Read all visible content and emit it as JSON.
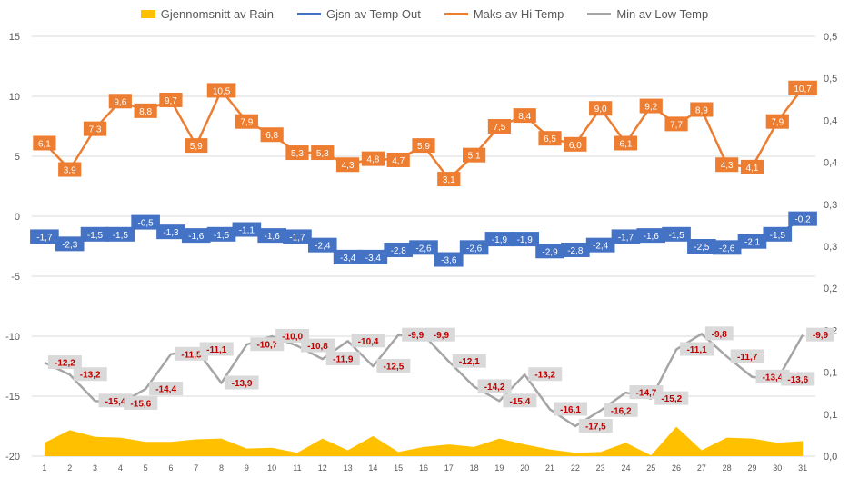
{
  "chart_data": {
    "type": "line",
    "categories": [
      "1",
      "2",
      "3",
      "4",
      "5",
      "6",
      "7",
      "8",
      "9",
      "10",
      "11",
      "12",
      "13",
      "14",
      "15",
      "16",
      "17",
      "18",
      "19",
      "20",
      "21",
      "22",
      "23",
      "24",
      "25",
      "26",
      "27",
      "28",
      "29",
      "30",
      "31"
    ],
    "y_left": {
      "range": [
        -20,
        15
      ],
      "ticks": [
        "-20",
        "-15",
        "-10",
        "-5",
        "0",
        "5",
        "10",
        "15"
      ]
    },
    "y_right": {
      "range": [
        0,
        0.5
      ],
      "ticks": [
        "0,0",
        "0,1",
        "0,1",
        "0,2",
        "0,2",
        "0,3",
        "0,3",
        "0,4",
        "0,4",
        "0,5",
        "0,5"
      ]
    },
    "grid": true,
    "legend_position": "top",
    "series": [
      {
        "name": "Gjennomsnitt av Rain",
        "type": "area",
        "axis": "right",
        "color": "#FFC000",
        "values": [
          0.016,
          0.031,
          0.023,
          0.022,
          0.017,
          0.017,
          0.02,
          0.021,
          0.009,
          0.01,
          0.004,
          0.021,
          0.007,
          0.024,
          0.005,
          0.011,
          0.014,
          0.011,
          0.021,
          0.014,
          0.008,
          0.004,
          0.005,
          0.016,
          0.001,
          0.035,
          0.007,
          0.022,
          0.021,
          0.016,
          0.018
        ]
      },
      {
        "name": "Gjsn av Temp Out",
        "type": "line",
        "axis": "left",
        "color": "#4472C4",
        "labels": [
          "-1,7",
          "-2,3",
          "-1,5",
          "-1,5",
          "-0,5",
          "-1,3",
          "-1,6",
          "-1,5",
          "-1,1",
          "-1,6",
          "-1,7",
          "-2,4",
          "-3,4",
          "-3,4",
          "-2,8",
          "-2,6",
          "-3,6",
          "-2,6",
          "-1,9",
          "-1,9",
          "-2,9",
          "-2,8",
          "-2,4",
          "-1,7",
          "-1,6",
          "-1,5",
          "-2,5",
          "-2,6",
          "-2,1",
          "-1,5",
          "-0,2"
        ],
        "values": [
          -1.7,
          -2.3,
          -1.5,
          -1.5,
          -0.5,
          -1.3,
          -1.6,
          -1.5,
          -1.1,
          -1.6,
          -1.7,
          -2.4,
          -3.4,
          -3.4,
          -2.8,
          -2.6,
          -3.6,
          -2.6,
          -1.9,
          -1.9,
          -2.9,
          -2.8,
          -2.4,
          -1.7,
          -1.6,
          -1.5,
          -2.5,
          -2.6,
          -2.1,
          -1.5,
          -0.2
        ]
      },
      {
        "name": "Maks av Hi Temp",
        "type": "line",
        "axis": "left",
        "color": "#ED7D31",
        "labels": [
          "6,1",
          "3,9",
          "7,3",
          "9,6",
          "8,8",
          "9,7",
          "5,9",
          "10,5",
          "7,9",
          "6,8",
          "5,3",
          "5,3",
          "4,3",
          "4,8",
          "4,7",
          "5,9",
          "3,1",
          "5,1",
          "7,5",
          "8,4",
          "6,5",
          "6,0",
          "9,0",
          "6,1",
          "9,2",
          "7,7",
          "8,9",
          "4,3",
          "4,1",
          "7,9",
          "10,7"
        ],
        "values": [
          6.1,
          3.9,
          7.3,
          9.6,
          8.8,
          9.7,
          5.9,
          10.5,
          7.9,
          6.8,
          5.3,
          5.3,
          4.3,
          4.8,
          4.7,
          5.9,
          3.1,
          5.1,
          7.5,
          8.4,
          6.5,
          6.0,
          9.0,
          6.1,
          9.2,
          7.7,
          8.9,
          4.3,
          4.1,
          7.9,
          10.7
        ]
      },
      {
        "name": "Min av Low Temp",
        "type": "line",
        "axis": "left",
        "color": "#A5A5A5",
        "labels": [
          "-12,2",
          "-13,2",
          "-15,4",
          "-15,6",
          "-14,4",
          "-11,5",
          "-11,1",
          "-13,9",
          "-10,7",
          "-10,0",
          "-10,8",
          "-11,9",
          "-10,4",
          "-12,5",
          "-9,9",
          "-9,9",
          "-12,1",
          "-14,2",
          "-15,4",
          "-13,2",
          "-16,1",
          "-17,5",
          "-16,2",
          "-14,7",
          "-15,2",
          "-11,1",
          "-9,8",
          "-11,7",
          "-13,4",
          "-13,6",
          "-9,9"
        ],
        "values": [
          -12.2,
          -13.2,
          -15.4,
          -15.6,
          -14.4,
          -11.5,
          -11.1,
          -13.9,
          -10.7,
          -10.0,
          -10.8,
          -11.9,
          -10.4,
          -12.5,
          -9.9,
          -9.9,
          -12.1,
          -14.2,
          -15.4,
          -13.2,
          -16.1,
          -17.5,
          -16.2,
          -14.7,
          -15.2,
          -11.1,
          -9.8,
          -11.7,
          -13.4,
          -13.6,
          -9.9
        ]
      }
    ]
  }
}
